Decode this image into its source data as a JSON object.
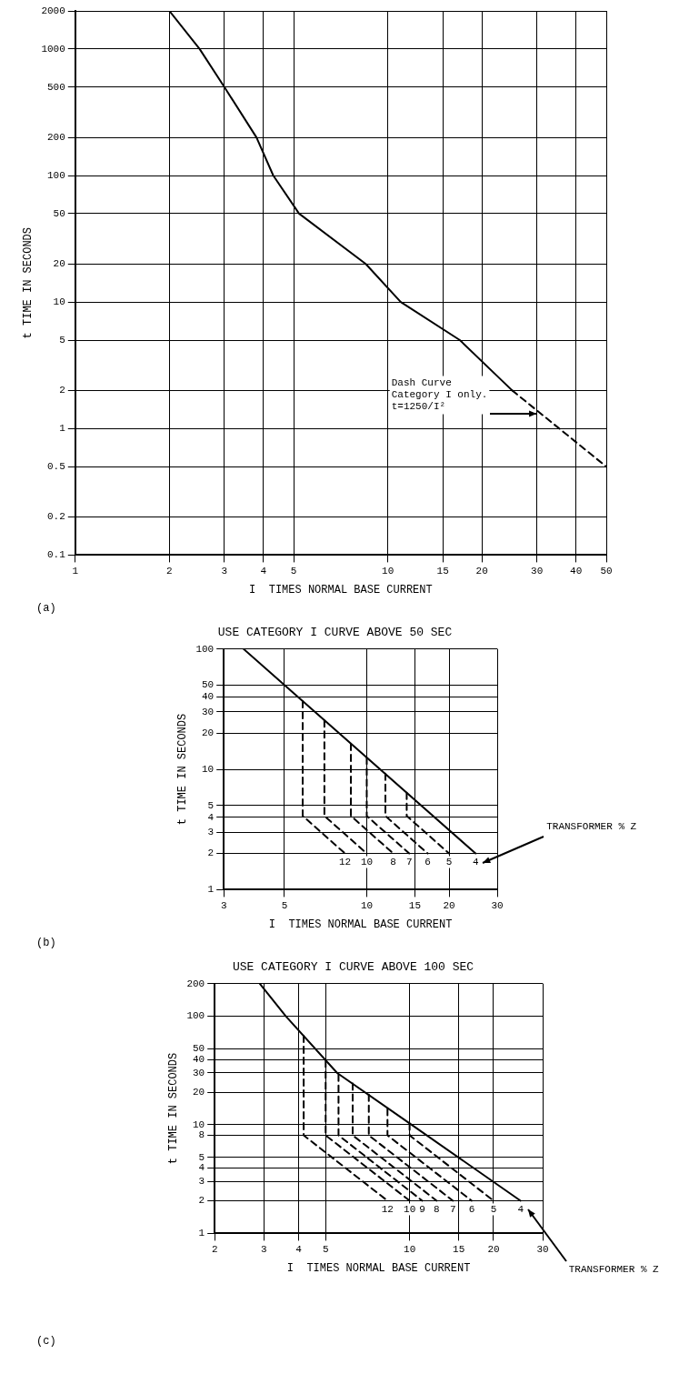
{
  "chart_data": [
    {
      "type": "line",
      "xlabel": "I  TIMES NORMAL BASE CURRENT",
      "ylabel": "t TIME IN SECONDS",
      "log": "xy",
      "grid": true,
      "xlim": [
        1,
        50
      ],
      "xticks": [
        1,
        2,
        3,
        4,
        5,
        10,
        15,
        20,
        30,
        40,
        50
      ],
      "ylim": [
        0.1,
        2000
      ],
      "yticks": [
        0.1,
        0.2,
        0.5,
        1,
        2,
        5,
        10,
        20,
        50,
        100,
        200,
        500,
        1000,
        2000
      ],
      "series": [
        {
          "color": "#000000",
          "x": [
            2,
            2.5,
            3,
            3.8,
            4.3,
            5.2,
            8.5,
            11,
            17,
            25
          ],
          "values": [
            2000,
            1000,
            500,
            200,
            100,
            50,
            20,
            10,
            5,
            2
          ]
        },
        {
          "color": "#000000",
          "line_style": "dashed",
          "x": [
            25,
            50
          ],
          "values": [
            2,
            0.5
          ]
        }
      ],
      "annotations": [
        {
          "text": "Dash Curve Category I only. t=1250/I²",
          "x": 30,
          "y": 1.3
        },
        "(a)"
      ]
    },
    {
      "type": "line",
      "title": "USE CATEGORY I CURVE ABOVE 50 SEC",
      "xlabel": "I  TIMES NORMAL BASE CURRENT",
      "ylabel": "t TIME IN SECONDS",
      "log": "xy",
      "grid": true,
      "xlim": [
        3,
        30
      ],
      "xticks": [
        3,
        5,
        10,
        15,
        20,
        30
      ],
      "ylim": [
        1,
        100
      ],
      "yticks": [
        1,
        2,
        3,
        4,
        5,
        10,
        20,
        30,
        40,
        50,
        100
      ],
      "series": [
        {
          "name": "4",
          "color": "#000000",
          "x": [
            3.54,
            25
          ],
          "values": [
            100,
            2
          ]
        },
        {
          "name": "12",
          "color": "#000000",
          "line_style": "dashed",
          "x": [
            5.83,
            5.83,
            8.33
          ],
          "values": [
            36.8,
            4.1,
            2
          ]
        },
        {
          "name": "10",
          "color": "#000000",
          "line_style": "dashed",
          "x": [
            7,
            7,
            10
          ],
          "values": [
            25.5,
            4.1,
            2
          ]
        },
        {
          "name": "8",
          "color": "#000000",
          "line_style": "dashed",
          "x": [
            8.75,
            8.75,
            12.5
          ],
          "values": [
            16.3,
            4.1,
            2
          ]
        },
        {
          "name": "7",
          "color": "#000000",
          "line_style": "dashed",
          "x": [
            10,
            10,
            14.3
          ],
          "values": [
            12.5,
            4.1,
            2
          ]
        },
        {
          "name": "6",
          "color": "#000000",
          "line_style": "dashed",
          "x": [
            11.7,
            11.7,
            16.7
          ],
          "values": [
            9.2,
            4.1,
            2
          ]
        },
        {
          "name": "5",
          "color": "#000000",
          "line_style": "dashed",
          "x": [
            14,
            14,
            20
          ],
          "values": [
            6.4,
            4.1,
            2
          ]
        }
      ],
      "annotations": [
        "TRANSFORMER % Z",
        "(b)"
      ]
    },
    {
      "type": "line",
      "title": "USE CATEGORY I CURVE ABOVE 100 SEC",
      "xlabel": "I  TIMES NORMAL BASE CURRENT",
      "ylabel": "t TIME IN SECONDS",
      "log": "xy",
      "grid": true,
      "xlim": [
        2,
        30
      ],
      "xticks": [
        2,
        3,
        4,
        5,
        10,
        15,
        20,
        30
      ],
      "ylim": [
        1,
        200
      ],
      "yticks": [
        1,
        2,
        3,
        4,
        5,
        8,
        10,
        20,
        30,
        40,
        50,
        100,
        200
      ],
      "series": [
        {
          "name": "4",
          "color": "#000000",
          "x": [
            2.9,
            3.6,
            5.5,
            10,
            25
          ],
          "values": [
            200,
            100,
            30,
            10.3,
            2
          ]
        },
        {
          "name": "12",
          "color": "#000000",
          "line_style": "dashed",
          "x": [
            4.17,
            4.17,
            8.33
          ],
          "values": [
            66,
            8,
            2
          ]
        },
        {
          "name": "10",
          "color": "#000000",
          "line_style": "dashed",
          "x": [
            5,
            5,
            10
          ],
          "values": [
            39,
            8,
            2
          ]
        },
        {
          "name": "9",
          "color": "#000000",
          "line_style": "dashed",
          "x": [
            5.56,
            5.56,
            11.1
          ],
          "values": [
            29,
            8,
            2
          ]
        },
        {
          "name": "8",
          "color": "#000000",
          "line_style": "dashed",
          "x": [
            6.25,
            6.25,
            12.5
          ],
          "values": [
            24,
            8,
            2
          ]
        },
        {
          "name": "7",
          "color": "#000000",
          "line_style": "dashed",
          "x": [
            7.14,
            7.14,
            14.3
          ],
          "values": [
            19,
            8,
            2
          ]
        },
        {
          "name": "6",
          "color": "#000000",
          "line_style": "dashed",
          "x": [
            8.33,
            8.33,
            16.7
          ],
          "values": [
            14,
            8,
            2
          ]
        },
        {
          "name": "5",
          "color": "#000000",
          "line_style": "dashed",
          "x": [
            10,
            10,
            20
          ],
          "values": [
            10.3,
            8,
            2
          ]
        }
      ],
      "annotations": [
        "TRANSFORMER % Z",
        "(c)"
      ]
    }
  ]
}
